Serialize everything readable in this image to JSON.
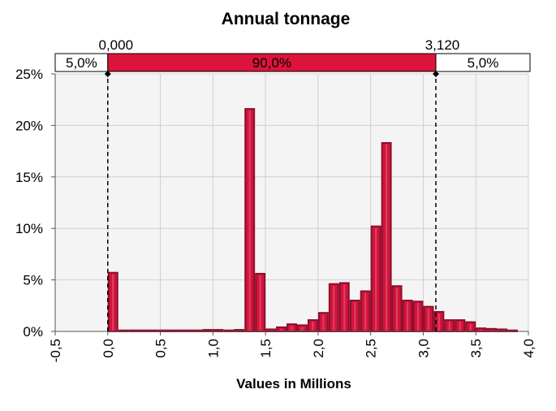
{
  "chart_data": {
    "type": "bar",
    "title": "Annual tonnage",
    "xlabel": "Values in Millions",
    "ylabel": "",
    "xlim": [
      -0.5,
      4.0
    ],
    "ylim": [
      0,
      25
    ],
    "x_ticks": [
      "-0,5",
      "0,0",
      "0,5",
      "1,0",
      "1,5",
      "2,0",
      "2,5",
      "3,0",
      "3,5",
      "4,0"
    ],
    "y_ticks": [
      "0%",
      "5%",
      "10%",
      "15%",
      "20%",
      "25%"
    ],
    "bin_width": 0.1,
    "series": [
      {
        "name": "Annual tonnage",
        "color": "#d0143c",
        "bins": [
          {
            "x": 0.0,
            "value": 5.7
          },
          {
            "x": 0.1,
            "value": 0.1
          },
          {
            "x": 0.2,
            "value": 0.1
          },
          {
            "x": 0.3,
            "value": 0.1
          },
          {
            "x": 0.4,
            "value": 0.1
          },
          {
            "x": 0.5,
            "value": 0.1
          },
          {
            "x": 0.6,
            "value": 0.1
          },
          {
            "x": 0.7,
            "value": 0.1
          },
          {
            "x": 0.8,
            "value": 0.1
          },
          {
            "x": 0.9,
            "value": 0.15
          },
          {
            "x": 1.0,
            "value": 0.15
          },
          {
            "x": 1.1,
            "value": 0.1
          },
          {
            "x": 1.2,
            "value": 0.15
          },
          {
            "x": 1.3,
            "value": 21.6
          },
          {
            "x": 1.4,
            "value": 5.6
          },
          {
            "x": 1.5,
            "value": 0.2
          },
          {
            "x": 1.6,
            "value": 0.4
          },
          {
            "x": 1.7,
            "value": 0.7
          },
          {
            "x": 1.8,
            "value": 0.6
          },
          {
            "x": 1.9,
            "value": 1.1
          },
          {
            "x": 2.0,
            "value": 1.8
          },
          {
            "x": 2.1,
            "value": 4.6
          },
          {
            "x": 2.2,
            "value": 4.7
          },
          {
            "x": 2.3,
            "value": 3.0
          },
          {
            "x": 2.4,
            "value": 3.9
          },
          {
            "x": 2.5,
            "value": 10.2
          },
          {
            "x": 2.6,
            "value": 18.3
          },
          {
            "x": 2.7,
            "value": 4.4
          },
          {
            "x": 2.8,
            "value": 3.0
          },
          {
            "x": 2.9,
            "value": 2.9
          },
          {
            "x": 3.0,
            "value": 2.4
          },
          {
            "x": 3.1,
            "value": 1.9
          },
          {
            "x": 3.2,
            "value": 1.1
          },
          {
            "x": 3.3,
            "value": 1.1
          },
          {
            "x": 3.4,
            "value": 0.9
          },
          {
            "x": 3.5,
            "value": 0.3
          },
          {
            "x": 3.6,
            "value": 0.25
          },
          {
            "x": 3.7,
            "value": 0.2
          },
          {
            "x": 3.8,
            "value": 0.1
          }
        ]
      }
    ],
    "confidence_band": {
      "left_value": 0.0,
      "right_value": 3.12,
      "left_label": "0,000",
      "right_label": "3,120",
      "left_pct": "5,0%",
      "middle_pct": "90,0%",
      "right_pct": "5,0%",
      "middle_color": "#dc143c"
    },
    "grid": true,
    "background": "#f4f4f4"
  }
}
